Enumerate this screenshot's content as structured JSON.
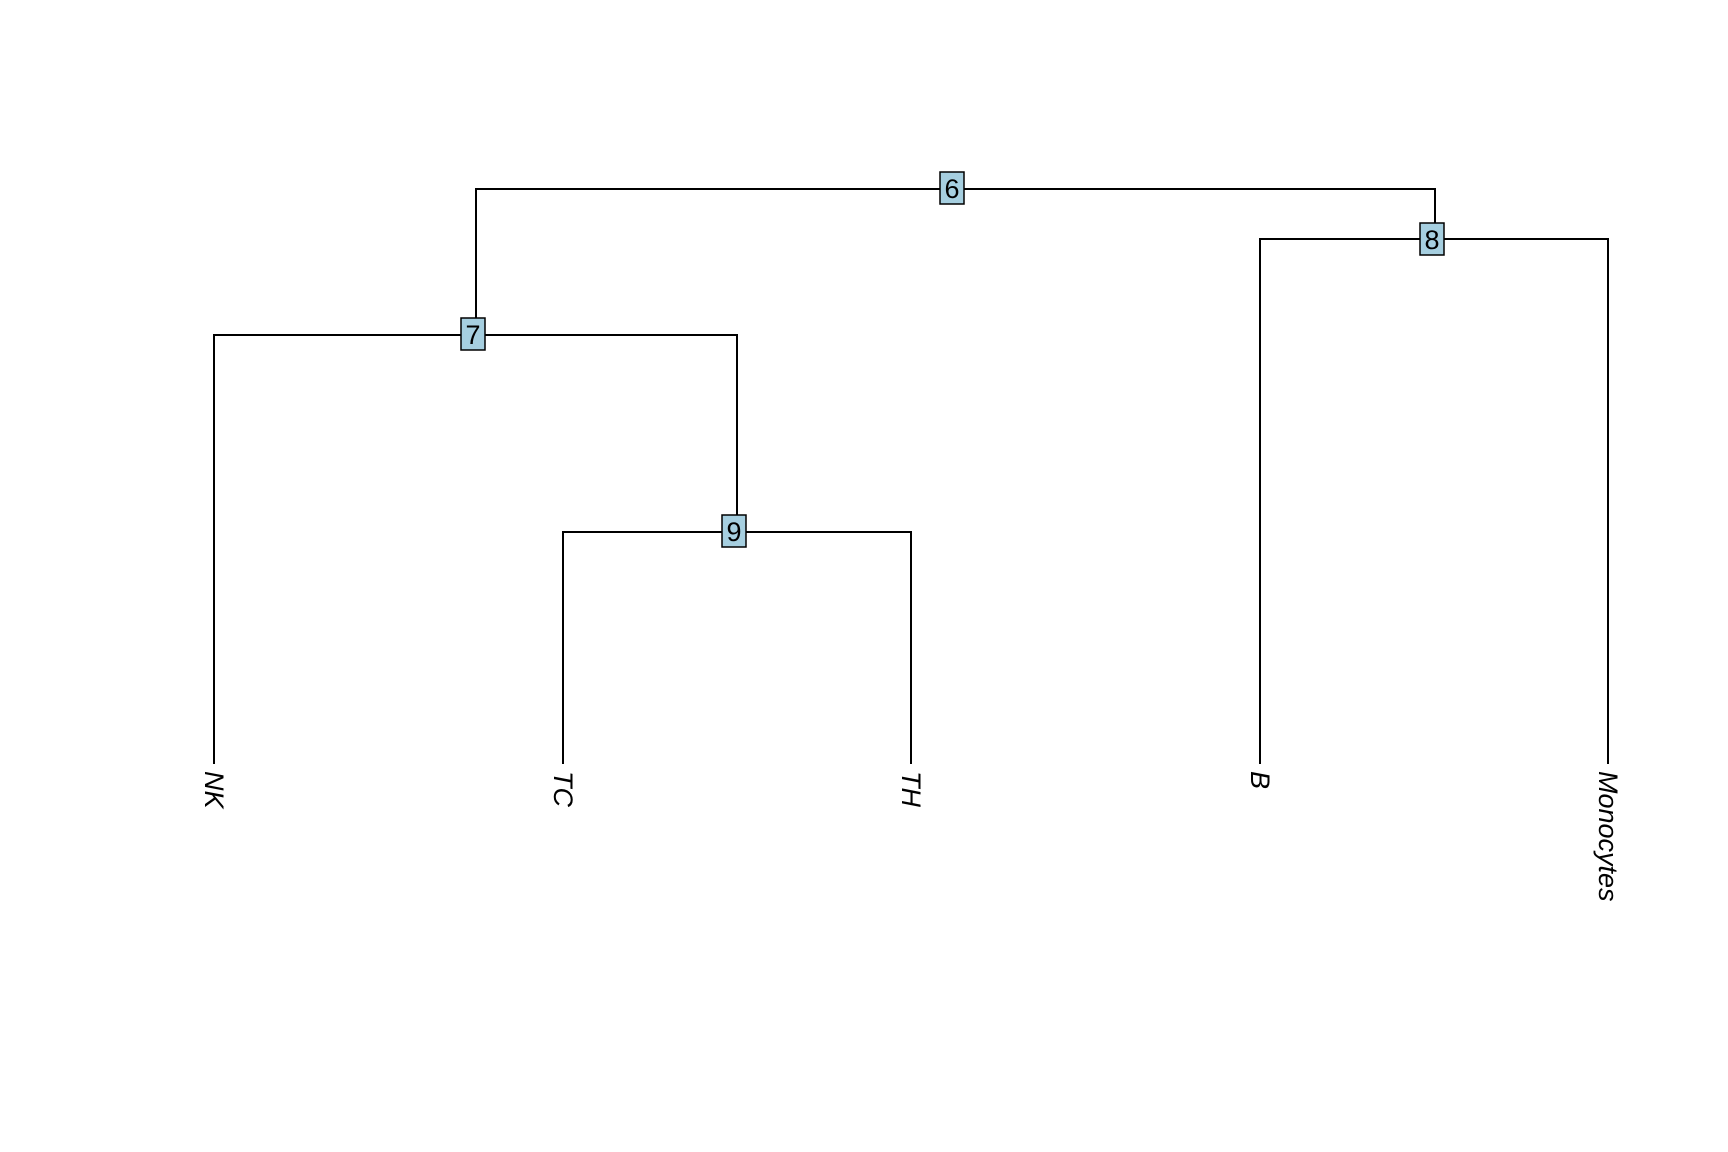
{
  "tree": {
    "node_fill": "#a6cfe0",
    "root": "6",
    "internal_nodes": [
      {
        "id": "6",
        "label": "6",
        "children": [
          "7",
          "8"
        ]
      },
      {
        "id": "7",
        "label": "7",
        "children": [
          "NK",
          "9"
        ]
      },
      {
        "id": "8",
        "label": "8",
        "children": [
          "B",
          "Monocytes"
        ]
      },
      {
        "id": "9",
        "label": "9",
        "children": [
          "TC",
          "TH"
        ]
      }
    ],
    "leaves": [
      {
        "id": "NK",
        "label": "NK"
      },
      {
        "id": "TC",
        "label": "TC"
      },
      {
        "id": "TH",
        "label": "TH"
      },
      {
        "id": "B",
        "label": "B"
      },
      {
        "id": "Monocytes",
        "label": "Monocytes"
      }
    ]
  }
}
